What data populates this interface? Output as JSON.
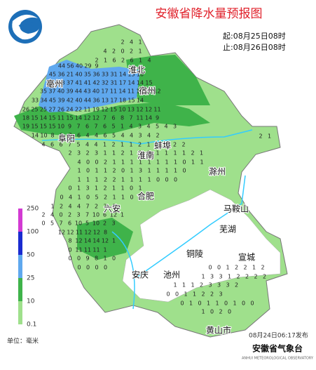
{
  "header": {
    "title": "安徽省降水量预报图",
    "start": "起:08月25日08时",
    "end": "止:08月26日08时"
  },
  "legend": {
    "ticks": [
      250,
      100,
      50,
      25,
      10,
      0.1
    ],
    "unit": "单位：毫米"
  },
  "cities": [
    "淮北",
    "亳州",
    "宿州",
    "阜阳",
    "蚌埠",
    "淮南",
    "滁州",
    "合肥",
    "六安",
    "马鞍山",
    "芜湖",
    "铜陵",
    "宣城",
    "安庆",
    "池州",
    "黄山市"
  ],
  "station_rows": [
    [
      2,
      4,
      1
    ],
    [
      4,
      2,
      0,
      2,
      1
    ],
    [
      2,
      1,
      6,
      2,
      6,
      1,
      4
    ],
    [
      44,
      56,
      40,
      29,
      9
    ],
    [
      45,
      36,
      21,
      40,
      35,
      36,
      33,
      31,
      14,
      15,
      10
    ],
    [
      40,
      38,
      37,
      41,
      41,
      42,
      32,
      31,
      17,
      14,
      14,
      15
    ],
    [
      35,
      37,
      40,
      39,
      44,
      43,
      40,
      17,
      11,
      14,
      11,
      11,
      19,
      12
    ],
    [
      33,
      34,
      45,
      39,
      42,
      40,
      44,
      36,
      13,
      17,
      18,
      15,
      14
    ],
    [
      26,
      25,
      25,
      27,
      26,
      24,
      22,
      11,
      19,
      12,
      15,
      10,
      13,
      12,
      12,
      11
    ],
    [
      18,
      15,
      14,
      15,
      11,
      15,
      14,
      12,
      12,
      7,
      6,
      8,
      7,
      11,
      14,
      9
    ],
    [
      19,
      15,
      15,
      15,
      10,
      9,
      7,
      6,
      7,
      6,
      5,
      1,
      4,
      3,
      4,
      5,
      4,
      3
    ],
    [
      14,
      10,
      8,
      8,
      7,
      6,
      4,
      4,
      6,
      5,
      4,
      4,
      3,
      4,
      2
    ],
    [
      4,
      6,
      6,
      7,
      5,
      4,
      4,
      1,
      2,
      1,
      1,
      2,
      1,
      4,
      5,
      2,
      2
    ],
    [
      2,
      3,
      2,
      3,
      1,
      1,
      2,
      1,
      1,
      2,
      1,
      1,
      1,
      1,
      2,
      1
    ],
    [
      4,
      0,
      0,
      2,
      1,
      1,
      1,
      1,
      1,
      1,
      1,
      1,
      0,
      1,
      1
    ],
    [
      1,
      0,
      1,
      1,
      2,
      0,
      1,
      3,
      1,
      1,
      1,
      1,
      0
    ],
    [
      1,
      1,
      1,
      2,
      2,
      1,
      1,
      1,
      1,
      0,
      0,
      0
    ],
    [
      0,
      1,
      3,
      1,
      2,
      1,
      1,
      0,
      1
    ],
    [
      0,
      4,
      1,
      0,
      5,
      2,
      1,
      1,
      0,
      0
    ],
    [
      1,
      2,
      4,
      4,
      7,
      2,
      3,
      0
    ],
    [
      2,
      4,
      0,
      2,
      3,
      7,
      10,
      6,
      12,
      1
    ],
    [
      0,
      5,
      7,
      6,
      10,
      5,
      10,
      2,
      3
    ],
    [
      12,
      12,
      11,
      12,
      12,
      8
    ],
    [
      8,
      12,
      14,
      14,
      12,
      1
    ],
    [
      0,
      11,
      11,
      11,
      1
    ],
    [
      0,
      0,
      9,
      8,
      1,
      0
    ],
    [
      0,
      0,
      0,
      0
    ],
    [
      0,
      0,
      1,
      2,
      2,
      1,
      2
    ],
    [
      1,
      3,
      3,
      1,
      2,
      2,
      2,
      2
    ],
    [
      1,
      1,
      1,
      2,
      3,
      3,
      3,
      2
    ],
    [
      0,
      0,
      1,
      1,
      2,
      2,
      3
    ],
    [
      0,
      1,
      0,
      1,
      1,
      0,
      1,
      0,
      0
    ],
    [
      1,
      0,
      2,
      0
    ],
    [
      2,
      1
    ]
  ],
  "footer": {
    "issued": "08月24日06:17发布",
    "org": "安徽省气象台",
    "org_en": "ANHUI METEOROLOGICAL OBSERVATORY"
  }
}
